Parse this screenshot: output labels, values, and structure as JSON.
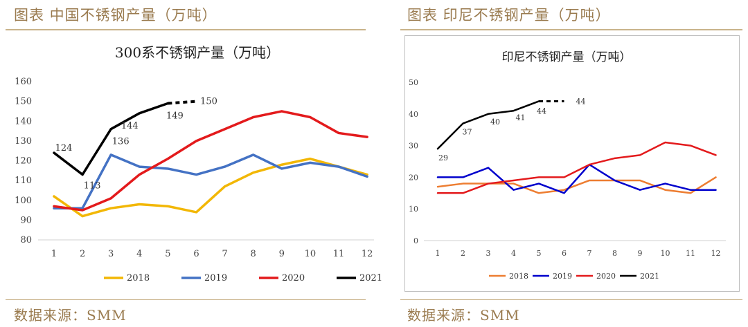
{
  "header": {
    "left_title": "图表  中国不锈钢产量（万吨）",
    "right_title": "图表  印尼不锈钢产量（万吨）"
  },
  "footer": {
    "left_source": "数据来源：SMM",
    "right_source": "数据来源：SMM"
  },
  "chart_data": [
    {
      "type": "line",
      "title": "300系不锈钢产量（万吨）",
      "x": [
        1,
        2,
        3,
        4,
        5,
        6,
        7,
        8,
        9,
        10,
        11,
        12
      ],
      "ylim": [
        80,
        160
      ],
      "yticks": [
        80,
        90,
        100,
        110,
        120,
        130,
        140,
        150,
        160
      ],
      "grid": false,
      "legend": "bottom",
      "series": [
        {
          "name": "2018",
          "color": "#f2b705",
          "values": [
            102,
            92,
            96,
            98,
            97,
            94,
            107,
            114,
            118,
            121,
            117,
            113
          ]
        },
        {
          "name": "2019",
          "color": "#4472c4",
          "values": [
            96,
            96,
            123,
            117,
            116,
            113,
            117,
            123,
            116,
            119,
            117,
            112
          ]
        },
        {
          "name": "2020",
          "color": "#e31a1c",
          "values": [
            97,
            95,
            101,
            113,
            121,
            130,
            136,
            142,
            145,
            142,
            134,
            132
          ]
        },
        {
          "name": "2021",
          "color": "#000000",
          "values": [
            124,
            113,
            136,
            144,
            149,
            null,
            null,
            null,
            null,
            null,
            null,
            null
          ],
          "forecast": {
            "x": [
              5,
              6
            ],
            "values": [
              149,
              150
            ]
          }
        }
      ],
      "annotations": [
        {
          "x": 1,
          "y": 124,
          "text": "124"
        },
        {
          "x": 2,
          "y": 113,
          "text": "113"
        },
        {
          "x": 3,
          "y": 136,
          "text": "136"
        },
        {
          "x": 4,
          "y": 144,
          "text": "144"
        },
        {
          "x": 5,
          "y": 149,
          "text": "149"
        },
        {
          "x": 6,
          "y": 150,
          "text": "150"
        }
      ]
    },
    {
      "type": "line",
      "title": "印尼不锈钢产量（万吨）",
      "x": [
        1,
        2,
        3,
        4,
        5,
        6,
        7,
        8,
        9,
        10,
        11,
        12
      ],
      "ylim": [
        0,
        50
      ],
      "yticks": [
        0,
        10,
        20,
        30,
        40,
        50
      ],
      "grid": false,
      "legend": "bottom",
      "series": [
        {
          "name": "2018",
          "color": "#ed7d31",
          "values": [
            17,
            18,
            18,
            18,
            15,
            16,
            19,
            19,
            19,
            16,
            15,
            20
          ]
        },
        {
          "name": "2019",
          "color": "#0000cc",
          "values": [
            20,
            20,
            23,
            16,
            18,
            15,
            24,
            19,
            16,
            18,
            16,
            16
          ]
        },
        {
          "name": "2020",
          "color": "#e31a1c",
          "values": [
            15,
            15,
            18,
            19,
            20,
            20,
            24,
            26,
            27,
            31,
            30,
            27
          ]
        },
        {
          "name": "2021",
          "color": "#000000",
          "values": [
            29,
            37,
            40,
            41,
            44,
            null,
            null,
            null,
            null,
            null,
            null,
            null
          ],
          "forecast": {
            "x": [
              5,
              6
            ],
            "values": [
              44,
              44
            ]
          }
        }
      ],
      "annotations": [
        {
          "x": 1,
          "y": 29,
          "text": "29"
        },
        {
          "x": 2,
          "y": 37,
          "text": "37"
        },
        {
          "x": 3,
          "y": 40,
          "text": "40"
        },
        {
          "x": 4,
          "y": 41,
          "text": "41"
        },
        {
          "x": 5,
          "y": 44,
          "text": "44"
        },
        {
          "x": 6,
          "y": 44,
          "text": "44"
        }
      ]
    }
  ]
}
